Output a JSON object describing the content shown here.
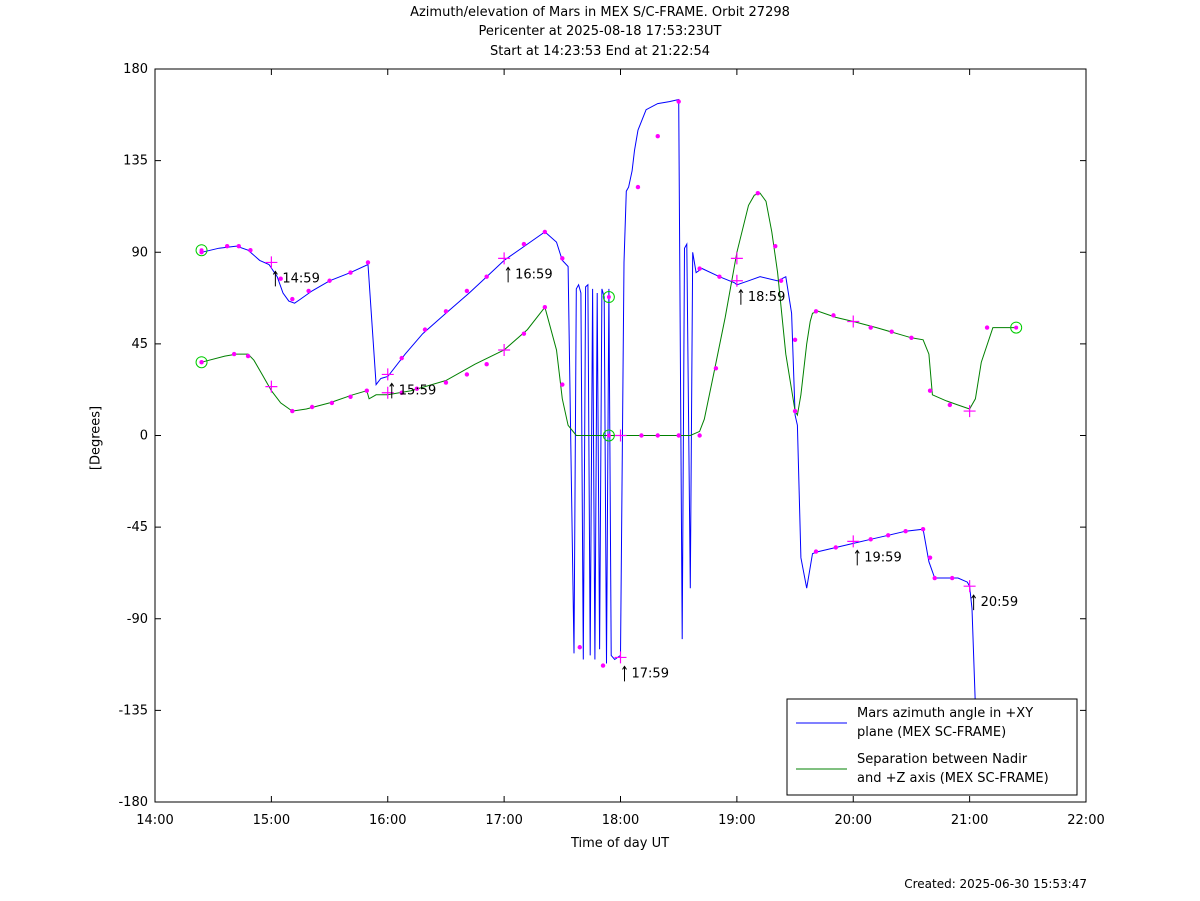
{
  "header": {
    "line1": "Azimuth/elevation of Mars in MEX S/C-FRAME.  Orbit 27298",
    "line2": "Pericenter at 2025-08-18 17:53:23UT",
    "line3": "Start at 14:23:53 End at 21:22:54"
  },
  "footer": {
    "created": "Created: 2025-06-30 15:53:47"
  },
  "chart_data": {
    "type": "line",
    "title": "Azimuth/elevation of Mars in MEX S/C-FRAME.  Orbit 27298",
    "subtitle": "Pericenter at 2025-08-18 17:53:23UT / Start at 14:23:53 End at 21:22:54",
    "xlabel": "Time of day UT",
    "ylabel": "[Degrees]",
    "xlim": [
      14,
      22
    ],
    "ylim": [
      -180,
      180
    ],
    "x_ticks": [
      14,
      15,
      16,
      17,
      18,
      19,
      20,
      21,
      22
    ],
    "x_tick_labels": [
      "14:00",
      "15:00",
      "16:00",
      "17:00",
      "18:00",
      "19:00",
      "20:00",
      "21:00",
      "22:00"
    ],
    "y_ticks": [
      -180,
      -135,
      -90,
      -45,
      0,
      45,
      90,
      135,
      180
    ],
    "y_tick_labels": [
      "-180",
      "-135",
      "-90",
      "-45",
      "0",
      "45",
      "90",
      "135",
      "180"
    ],
    "legend_position": "bottom-right",
    "colors": {
      "azimuth": "#0000ff",
      "separation": "#008000",
      "markers": "#ff00ff",
      "endpoints": "#00cc00",
      "axis": "#000000"
    },
    "series": [
      {
        "name": "Mars azimuth angle in +XY plane (MEX SC-FRAME)",
        "legend_line1": "Mars azimuth angle in +XY",
        "legend_line2": "plane (MEX SC-FRAME)",
        "key": "azimuth",
        "x": [
          14.4,
          14.55,
          14.7,
          14.8,
          14.9,
          14.98,
          15.05,
          15.1,
          15.15,
          15.2,
          15.25,
          15.35,
          15.5,
          15.68,
          15.83,
          15.9,
          15.94,
          16.0,
          16.15,
          16.3,
          16.5,
          16.7,
          16.85,
          17.0,
          17.2,
          17.35,
          17.45,
          17.5,
          17.55,
          17.6,
          17.62,
          17.64,
          17.66,
          17.68,
          17.7,
          17.72,
          17.74,
          17.76,
          17.78,
          17.8,
          17.82,
          17.84,
          17.86,
          17.88,
          17.9,
          17.92,
          17.95,
          18.0,
          18.03,
          18.05,
          18.07,
          18.1,
          18.12,
          18.15,
          18.22,
          18.32,
          18.42,
          18.5,
          18.53,
          18.55,
          18.57,
          18.6,
          18.62,
          18.65,
          18.7,
          18.85,
          18.98,
          19.0,
          19.1,
          19.2,
          19.35,
          19.42,
          19.47,
          19.5,
          19.52,
          19.55,
          19.6,
          19.65,
          19.7,
          19.85,
          20.0,
          20.15,
          20.3,
          20.45,
          20.6,
          20.65,
          20.7,
          20.8,
          20.9,
          20.98,
          21.0,
          21.02,
          21.05
        ],
        "y": [
          90,
          92,
          93,
          91,
          86,
          84,
          78,
          70,
          66,
          65,
          67,
          71,
          76,
          80,
          84,
          25,
          28,
          29,
          40,
          50,
          60,
          70,
          78,
          86,
          94,
          100,
          95,
          86,
          83,
          -107,
          72,
          74,
          70,
          -110,
          73,
          74,
          -108,
          72,
          -110,
          70,
          -105,
          72,
          68,
          -112,
          72,
          -108,
          -110,
          -108,
          85,
          120,
          122,
          130,
          140,
          150,
          160,
          163,
          164,
          165,
          -100,
          92,
          94,
          -75,
          90,
          80,
          82,
          78,
          75,
          74,
          76,
          78,
          76,
          78,
          60,
          10,
          5,
          -60,
          -75,
          -58,
          -57,
          -55,
          -53,
          -51,
          -49,
          -47,
          -46,
          -62,
          -70,
          -70,
          -70,
          -72,
          -74,
          -85,
          -133
        ]
      },
      {
        "name": "Separation between Nadir and +Z axis (MEX SC-FRAME)",
        "legend_line1": "Separation between Nadir",
        "legend_line2": "and +Z axis (MEX SC-FRAME)",
        "key": "separation",
        "x": [
          14.4,
          14.6,
          14.7,
          14.8,
          14.85,
          14.92,
          15.0,
          15.08,
          15.18,
          15.3,
          15.5,
          15.7,
          15.82,
          15.84,
          15.87,
          15.9,
          16.0,
          16.2,
          16.5,
          16.75,
          17.0,
          17.2,
          17.35,
          17.45,
          17.5,
          17.55,
          17.62,
          17.68,
          18.5,
          18.6,
          18.68,
          18.72,
          18.8,
          18.9,
          19.0,
          19.1,
          19.15,
          19.2,
          19.25,
          19.3,
          19.35,
          19.42,
          19.5,
          19.52,
          19.55,
          19.6,
          19.63,
          19.65,
          19.7,
          19.85,
          20.0,
          20.2,
          20.5,
          20.6,
          20.65,
          20.68,
          20.8,
          20.9,
          21.0,
          21.05,
          21.1,
          21.2,
          21.4
        ],
        "y": [
          36,
          39,
          40,
          40,
          37,
          30,
          22,
          16,
          12,
          13,
          16,
          20,
          22,
          18,
          19,
          20,
          20,
          22,
          27,
          35,
          42,
          52,
          63,
          42,
          18,
          5,
          0,
          0,
          0,
          0,
          2,
          8,
          30,
          58,
          90,
          113,
          118,
          119,
          115,
          100,
          80,
          40,
          12,
          10,
          20,
          45,
          56,
          60,
          61,
          58,
          56,
          53,
          48,
          47,
          40,
          20,
          17,
          15,
          13,
          18,
          36,
          53,
          53
        ]
      }
    ],
    "marker_points": [
      {
        "x": 14.4,
        "y": 90
      },
      {
        "x": 14.62,
        "y": 93
      },
      {
        "x": 14.72,
        "y": 93
      },
      {
        "x": 14.82,
        "y": 91
      },
      {
        "x": 15.08,
        "y": 77
      },
      {
        "x": 15.18,
        "y": 67
      },
      {
        "x": 15.32,
        "y": 71
      },
      {
        "x": 15.5,
        "y": 76
      },
      {
        "x": 15.68,
        "y": 80
      },
      {
        "x": 15.83,
        "y": 85
      },
      {
        "x": 16.12,
        "y": 38
      },
      {
        "x": 16.32,
        "y": 52
      },
      {
        "x": 16.5,
        "y": 61
      },
      {
        "x": 16.68,
        "y": 71
      },
      {
        "x": 16.85,
        "y": 78
      },
      {
        "x": 17.17,
        "y": 94
      },
      {
        "x": 17.35,
        "y": 100
      },
      {
        "x": 17.5,
        "y": 87
      },
      {
        "x": 17.65,
        "y": -104
      },
      {
        "x": 17.85,
        "y": -113
      },
      {
        "x": 18.15,
        "y": 122
      },
      {
        "x": 18.32,
        "y": 147
      },
      {
        "x": 18.5,
        "y": 164
      },
      {
        "x": 18.68,
        "y": 82
      },
      {
        "x": 18.85,
        "y": 78
      },
      {
        "x": 19.38,
        "y": 76
      },
      {
        "x": 19.68,
        "y": -57
      },
      {
        "x": 19.85,
        "y": -55
      },
      {
        "x": 20.15,
        "y": -51
      },
      {
        "x": 20.3,
        "y": -49
      },
      {
        "x": 20.45,
        "y": -47
      },
      {
        "x": 20.6,
        "y": -46
      },
      {
        "x": 20.66,
        "y": -60
      },
      {
        "x": 20.7,
        "y": -70
      },
      {
        "x": 20.85,
        "y": -70
      },
      {
        "x": 14.4,
        "y": 36
      },
      {
        "x": 14.68,
        "y": 40
      },
      {
        "x": 14.8,
        "y": 39
      },
      {
        "x": 15.18,
        "y": 12
      },
      {
        "x": 15.35,
        "y": 14
      },
      {
        "x": 15.52,
        "y": 16
      },
      {
        "x": 15.68,
        "y": 19
      },
      {
        "x": 15.82,
        "y": 22
      },
      {
        "x": 16.12,
        "y": 21
      },
      {
        "x": 16.25,
        "y": 23
      },
      {
        "x": 16.5,
        "y": 26
      },
      {
        "x": 16.68,
        "y": 30
      },
      {
        "x": 16.85,
        "y": 35
      },
      {
        "x": 17.17,
        "y": 50
      },
      {
        "x": 17.35,
        "y": 63
      },
      {
        "x": 17.5,
        "y": 25
      },
      {
        "x": 18.18,
        "y": 0
      },
      {
        "x": 18.32,
        "y": 0
      },
      {
        "x": 18.5,
        "y": 0
      },
      {
        "x": 18.68,
        "y": 0
      },
      {
        "x": 18.82,
        "y": 33
      },
      {
        "x": 19.18,
        "y": 119
      },
      {
        "x": 19.33,
        "y": 93
      },
      {
        "x": 19.5,
        "y": 47
      },
      {
        "x": 19.5,
        "y": 12
      },
      {
        "x": 19.68,
        "y": 61
      },
      {
        "x": 19.83,
        "y": 59
      },
      {
        "x": 20.15,
        "y": 53
      },
      {
        "x": 20.33,
        "y": 51
      },
      {
        "x": 20.5,
        "y": 48
      },
      {
        "x": 20.66,
        "y": 22
      },
      {
        "x": 20.83,
        "y": 15
      },
      {
        "x": 21.15,
        "y": 53
      }
    ],
    "plus_points": [
      {
        "x": 15.0,
        "y": 85
      },
      {
        "x": 15.0,
        "y": 24
      },
      {
        "x": 16.0,
        "y": 30
      },
      {
        "x": 16.0,
        "y": 21
      },
      {
        "x": 17.0,
        "y": 87
      },
      {
        "x": 17.0,
        "y": 42
      },
      {
        "x": 18.0,
        "y": -109
      },
      {
        "x": 18.0,
        "y": 0
      },
      {
        "x": 19.0,
        "y": 87
      },
      {
        "x": 19.0,
        "y": 76
      },
      {
        "x": 20.0,
        "y": -52
      },
      {
        "x": 20.0,
        "y": 56
      },
      {
        "x": 21.0,
        "y": -74
      },
      {
        "x": 21.0,
        "y": 12
      }
    ],
    "circle_points": [
      {
        "x": 14.4,
        "y": 91
      },
      {
        "x": 14.4,
        "y": 36
      },
      {
        "x": 17.9,
        "y": 68
      },
      {
        "x": 17.9,
        "y": 0
      },
      {
        "x": 21.4,
        "y": 53
      }
    ],
    "annotations": [
      {
        "text": "14:59",
        "x": 15.0,
        "y": 85
      },
      {
        "text": "15:59",
        "x": 16.0,
        "y": 30
      },
      {
        "text": "16:59",
        "x": 17.0,
        "y": 87
      },
      {
        "text": "17:59",
        "x": 18.0,
        "y": -109
      },
      {
        "text": "18:59",
        "x": 19.0,
        "y": 76
      },
      {
        "text": "19:59",
        "x": 20.0,
        "y": -52
      },
      {
        "text": "20:59",
        "x": 21.0,
        "y": -74
      }
    ]
  }
}
